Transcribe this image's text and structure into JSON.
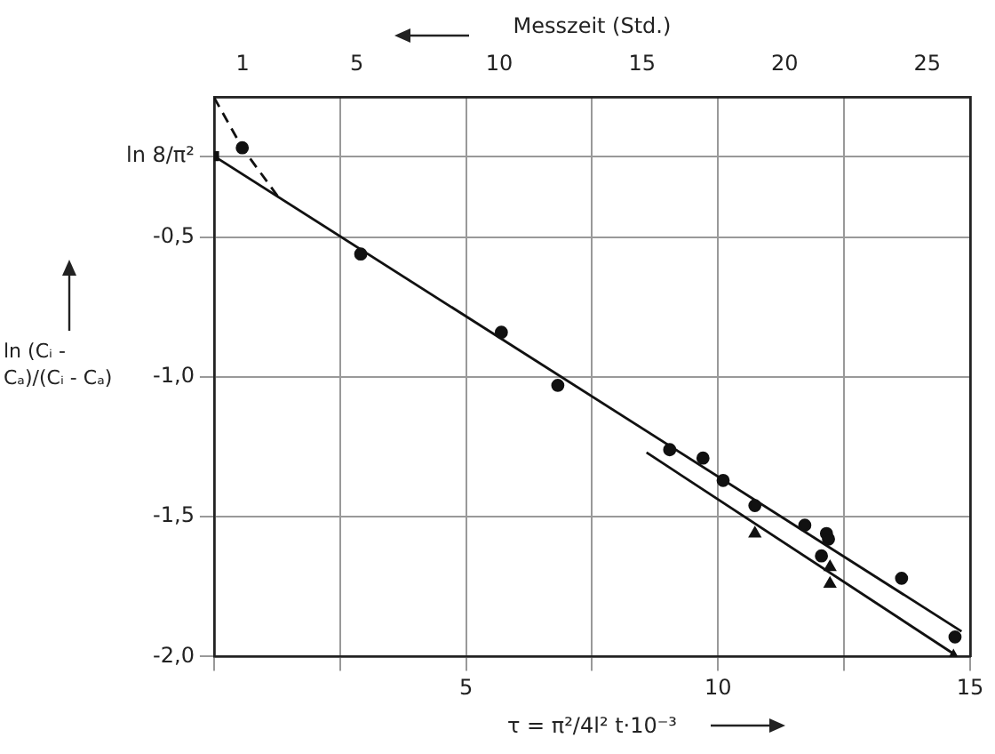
{
  "chart_data": {
    "type": "scatter",
    "xlabel": "τ = π²/4l² t·10⁻³",
    "ylabel": "ln (Cᵢ - Cₐ)/(Cᵢ - Cₐ)",
    "x2label": "Messzeit (Std.)",
    "xlim": [
      0,
      15
    ],
    "xticks": [
      {
        "value": 0,
        "label": null
      },
      {
        "value": 2.5,
        "label": null
      },
      5,
      {
        "value": 7.5,
        "label": null
      },
      10,
      {
        "value": 12.5,
        "label": null
      },
      15
    ],
    "x2lim": [
      0,
      26.5
    ],
    "x2ticks": [
      1,
      5,
      10,
      15,
      20,
      25
    ],
    "ylim": [
      -2.0,
      0
    ],
    "yticks": [
      {
        "value": -2.0,
        "label": "-2,0"
      },
      {
        "value": -1.5,
        "label": "-1,5"
      },
      {
        "value": -1.0,
        "label": "-1,0"
      },
      {
        "value": -0.5,
        "label": "-0,5"
      },
      {
        "value": -0.21,
        "label": "ln 8/π²"
      }
    ],
    "grid": true,
    "legend": false,
    "series": [
      {
        "marker": "circle",
        "color": "#111111",
        "x": [
          0.56,
          2.91,
          5.7,
          6.82,
          9.04,
          9.7,
          10.1,
          10.73,
          11.72,
          12.15,
          12.19,
          12.05,
          13.64,
          14.7
        ],
        "values": [
          -0.18,
          -0.56,
          -0.84,
          -1.03,
          -1.26,
          -1.29,
          -1.37,
          -1.46,
          -1.53,
          -1.56,
          -1.58,
          -1.64,
          -1.72,
          -1.93
        ]
      },
      {
        "marker": "triangle",
        "color": "#111111",
        "x": [
          10.73,
          12.22,
          12.22,
          14.67
        ],
        "values": [
          -1.56,
          -1.68,
          -1.74,
          -2.0
        ]
      },
      {
        "marker": "square",
        "color": "#111111",
        "x": [
          0
        ],
        "values": [
          -0.21
        ]
      },
      {
        "type": "line",
        "marker": "none",
        "line_style": "solid",
        "color": "#111111",
        "x": [
          0,
          14.83
        ],
        "values": [
          -0.21,
          -1.91
        ]
      },
      {
        "type": "line",
        "marker": "none",
        "line_style": "solid",
        "color": "#111111",
        "x": [
          8.58,
          14.67
        ],
        "values": [
          -1.27,
          -1.99
        ]
      },
      {
        "type": "line",
        "marker": "none",
        "line_style": "dashed",
        "color": "#111111",
        "x": [
          0,
          0.56,
          1.29
        ],
        "values": [
          0,
          -0.18,
          -0.36
        ]
      }
    ]
  }
}
